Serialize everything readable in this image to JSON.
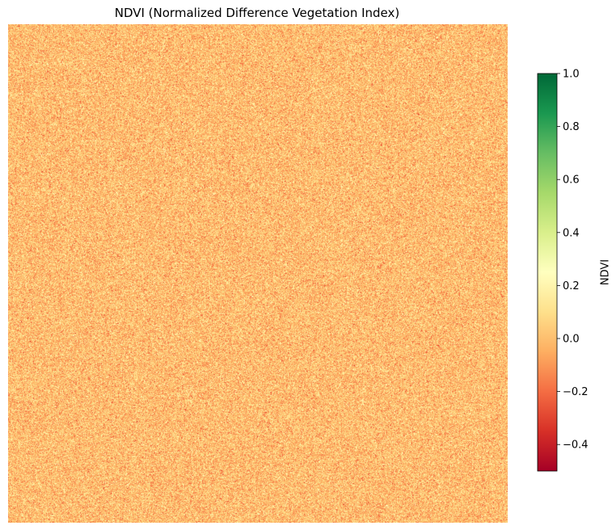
{
  "chart_data": {
    "type": "heatmap",
    "title": "NDVI (Normalized Difference Vegetation Index)",
    "colormap": "RdYlGn",
    "axes_visible": false,
    "grid": false,
    "value_distribution": {
      "description_of_values": "random noise field",
      "mean": 0.0,
      "std": 0.1
    },
    "colorbar": {
      "label": "NDVI",
      "placement": "right",
      "range": [
        -0.5,
        1.0
      ],
      "ticks": [
        1.0,
        0.8,
        0.6,
        0.4,
        0.2,
        0.0,
        -0.2,
        -0.4
      ],
      "tick_labels": [
        "1.0",
        "0.8",
        "0.6",
        "0.4",
        "0.2",
        "0.0",
        "−0.2",
        "−0.4"
      ],
      "colors": [
        "#a50026",
        "#d73027",
        "#f46d43",
        "#fdae61",
        "#fee08b",
        "#ffffbf",
        "#d9ef8b",
        "#a6d96a",
        "#66bd63",
        "#1a9850",
        "#006837"
      ]
    }
  }
}
